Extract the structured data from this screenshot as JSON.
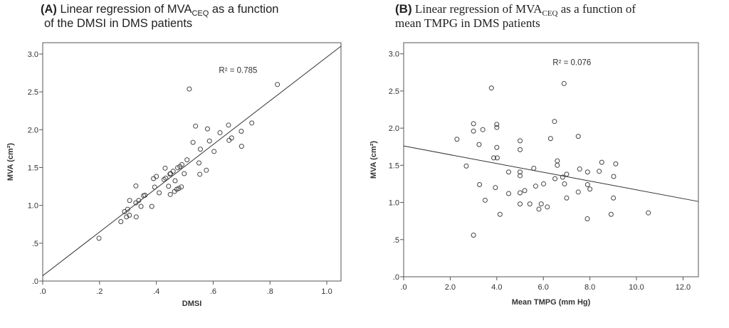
{
  "chart_data": [
    {
      "type": "scatter",
      "panel_label": "(A)",
      "title_pre": "Linear regression of MVA",
      "title_sub": "CEQ",
      "title_post": " as a function",
      "title_line2": "of the DMSI in DMS patients",
      "xlabel": "DMSI",
      "ylabel": "MVA (cm²)",
      "xlim": [
        0,
        1.05
      ],
      "ylim": [
        0,
        3.15
      ],
      "xticks": [
        0,
        0.2,
        0.4,
        0.6,
        0.8,
        1.0
      ],
      "xtick_labels": [
        ".0",
        ".2",
        ".4",
        ".6",
        ".8",
        "1.0"
      ],
      "yticks": [
        0,
        0.5,
        1.0,
        1.5,
        2.0,
        2.5,
        3.0
      ],
      "ytick_labels": [
        ".0",
        ".5",
        "1.0",
        "1.5",
        "2.0",
        "2.5",
        "3.0"
      ],
      "annotation": "R² = 0.785",
      "annotation_pos": [
        0.62,
        2.75
      ],
      "fit": {
        "intercept": 0.07,
        "slope": 2.89
      },
      "points": [
        [
          0.198,
          0.565
        ],
        [
          0.275,
          0.785
        ],
        [
          0.288,
          0.917
        ],
        [
          0.299,
          0.949
        ],
        [
          0.295,
          0.848
        ],
        [
          0.305,
          0.87
        ],
        [
          0.306,
          1.065
        ],
        [
          0.328,
          1.033
        ],
        [
          0.328,
          1.257
        ],
        [
          0.329,
          0.848
        ],
        [
          0.338,
          1.065
        ],
        [
          0.346,
          0.986
        ],
        [
          0.355,
          1.128
        ],
        [
          0.36,
          1.134
        ],
        [
          0.384,
          0.986
        ],
        [
          0.39,
          1.354
        ],
        [
          0.4,
          1.382
        ],
        [
          0.394,
          1.241
        ],
        [
          0.41,
          1.166
        ],
        [
          0.431,
          1.492
        ],
        [
          0.427,
          1.341
        ],
        [
          0.433,
          1.36
        ],
        [
          0.443,
          1.253
        ],
        [
          0.448,
          1.414
        ],
        [
          0.449,
          1.144
        ],
        [
          0.45,
          1.42
        ],
        [
          0.459,
          1.451
        ],
        [
          0.466,
          1.326
        ],
        [
          0.464,
          1.184
        ],
        [
          0.472,
          1.213
        ],
        [
          0.479,
          1.225
        ],
        [
          0.488,
          1.244
        ],
        [
          0.475,
          1.498
        ],
        [
          0.483,
          1.514
        ],
        [
          0.49,
          1.539
        ],
        [
          0.498,
          1.42
        ],
        [
          0.508,
          1.602
        ],
        [
          0.516,
          2.538
        ],
        [
          0.529,
          1.832
        ],
        [
          0.538,
          2.048
        ],
        [
          0.55,
          1.561
        ],
        [
          0.553,
          1.411
        ],
        [
          0.555,
          1.743
        ],
        [
          0.576,
          1.464
        ],
        [
          0.58,
          2.011
        ],
        [
          0.587,
          1.851
        ],
        [
          0.603,
          1.712
        ],
        [
          0.624,
          1.96
        ],
        [
          0.654,
          2.061
        ],
        [
          0.656,
          1.86
        ],
        [
          0.665,
          1.891
        ],
        [
          0.699,
          1.979
        ],
        [
          0.7,
          1.781
        ],
        [
          0.736,
          2.089
        ],
        [
          0.826,
          2.598
        ]
      ]
    },
    {
      "type": "scatter",
      "panel_label": "(B)",
      "title_pre": "Linear regression of MVA",
      "title_sub": "CEQ",
      "title_post": " as a function of",
      "title_line2": "mean TMPG in DMS patients",
      "xlabel": "Mean TMPG (mm Hg)",
      "ylabel": "MVA (cm²)",
      "xlim": [
        0,
        12.66
      ],
      "ylim": [
        0,
        3.15
      ],
      "xticks": [
        0,
        2,
        4,
        6,
        8,
        10,
        12
      ],
      "xtick_labels": [
        ".0",
        "2.0",
        "4.0",
        "6.0",
        "8.0",
        "10.0",
        "12.0"
      ],
      "yticks": [
        0,
        0.5,
        1.0,
        1.5,
        2.0,
        2.5,
        3.0
      ],
      "ytick_labels": [
        ".0",
        ".5",
        "1.0",
        "1.5",
        "2.0",
        "2.5",
        "3.0"
      ],
      "annotation": "R² = 0.076",
      "annotation_pos": [
        6.4,
        2.85
      ],
      "fit": {
        "intercept": 1.76,
        "slope": -0.059
      },
      "points": [
        [
          2.29,
          1.85
        ],
        [
          2.69,
          1.49
        ],
        [
          3.0,
          2.06
        ],
        [
          3.0,
          1.96
        ],
        [
          3.0,
          0.56
        ],
        [
          3.24,
          1.78
        ],
        [
          3.26,
          1.24
        ],
        [
          3.4,
          1.98
        ],
        [
          3.5,
          1.03
        ],
        [
          3.77,
          2.54
        ],
        [
          3.87,
          1.6
        ],
        [
          3.94,
          1.2
        ],
        [
          4.0,
          2.05
        ],
        [
          4.0,
          2.01
        ],
        [
          4.0,
          1.74
        ],
        [
          4.02,
          1.6
        ],
        [
          4.14,
          0.84
        ],
        [
          4.51,
          1.41
        ],
        [
          4.51,
          1.12
        ],
        [
          5.0,
          1.83
        ],
        [
          5.0,
          1.71
        ],
        [
          5.0,
          1.41
        ],
        [
          5.0,
          1.36
        ],
        [
          5.0,
          1.13
        ],
        [
          5.0,
          0.98
        ],
        [
          5.2,
          1.16
        ],
        [
          5.42,
          0.98
        ],
        [
          5.59,
          1.46
        ],
        [
          5.67,
          1.22
        ],
        [
          5.81,
          0.91
        ],
        [
          5.91,
          0.98
        ],
        [
          6.01,
          1.25
        ],
        [
          6.17,
          0.94
        ],
        [
          6.31,
          1.86
        ],
        [
          6.48,
          2.09
        ],
        [
          6.5,
          1.32
        ],
        [
          6.6,
          1.56
        ],
        [
          6.6,
          1.5
        ],
        [
          6.83,
          1.34
        ],
        [
          6.89,
          2.6
        ],
        [
          6.91,
          1.25
        ],
        [
          7.0,
          1.38
        ],
        [
          7.0,
          1.06
        ],
        [
          7.5,
          1.89
        ],
        [
          7.5,
          1.14
        ],
        [
          7.56,
          1.45
        ],
        [
          7.9,
          1.41
        ],
        [
          7.9,
          1.24
        ],
        [
          7.89,
          0.78
        ],
        [
          8.0,
          1.18
        ],
        [
          8.4,
          1.42
        ],
        [
          8.51,
          1.54
        ],
        [
          8.91,
          0.84
        ],
        [
          9.02,
          1.35
        ],
        [
          9.01,
          1.06
        ],
        [
          9.11,
          1.52
        ],
        [
          10.51,
          0.86
        ]
      ]
    }
  ]
}
